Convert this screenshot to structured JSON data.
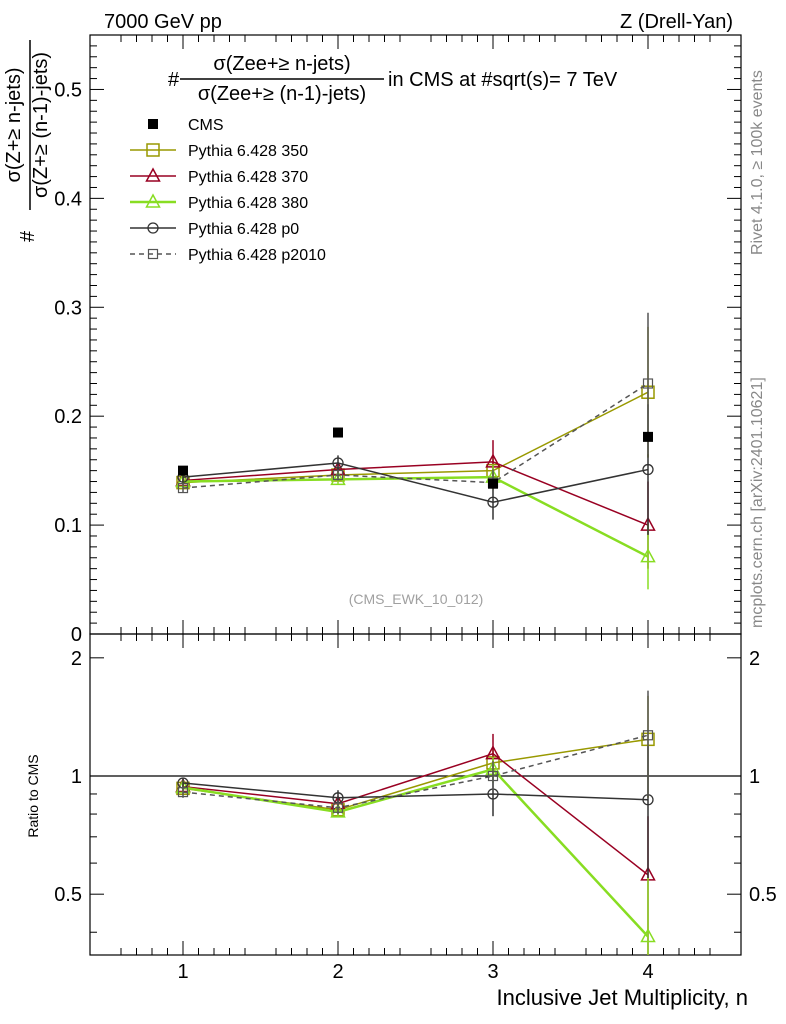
{
  "header": {
    "energy_label": "7000 GeV pp",
    "process_label": "Z (Drell-Yan)"
  },
  "side": {
    "rivet_label": "Rivet 4.1.0, ≥ 100k events",
    "mcplots_label": "mcplots.cern.ch [arXiv:2401.10621]"
  },
  "chart_data": [
    {
      "type": "scatter",
      "panel": "main",
      "title_prefix": "#",
      "title_numerator": "σ(Zee+≥ n-jets)",
      "title_denominator": "σ(Zee+≥ (n-1)-jets)",
      "title_suffix": "in CMS at #sqrt(s)= 7 TeV",
      "ylabel_prefix": "#",
      "ylabel_numerator": "σ(Z+≥ n-jets)",
      "ylabel_denominator": "σ(Z+≥ (n-1)-jets)",
      "ylim": [
        0,
        0.55
      ],
      "xlim": [
        0.4,
        4.6
      ],
      "yticks": [
        "0",
        "0.1",
        "0.2",
        "0.3",
        "0.4",
        "0.5"
      ],
      "analysis_id": "(CMS_EWK_10_012)",
      "legend": [
        "CMS",
        "Pythia 6.428 350",
        "Pythia 6.428 370",
        "Pythia 6.428 380",
        "Pythia 6.428 p0",
        "Pythia 6.428 p2010"
      ],
      "x": [
        1,
        2,
        3,
        4
      ],
      "series": [
        {
          "name": "CMS",
          "values": [
            0.15,
            0.185,
            0.138,
            0.181
          ],
          "color": "#000000",
          "marker": "filled-square"
        },
        {
          "name": "Pythia 6.428 350",
          "values": [
            0.139,
            0.146,
            0.15,
            0.222
          ],
          "errors": [
            0.004,
            0.005,
            0.012,
            0.06
          ],
          "color": "#999900",
          "marker": "open-square"
        },
        {
          "name": "Pythia 6.428 370",
          "values": [
            0.141,
            0.151,
            0.158,
            0.1
          ],
          "errors": [
            0.004,
            0.005,
            0.02,
            0.04
          ],
          "color": "#990022",
          "marker": "open-triangle"
        },
        {
          "name": "Pythia 6.428 380",
          "values": [
            0.14,
            0.142,
            0.144,
            0.071
          ],
          "errors": [
            0.004,
            0.004,
            0.012,
            0.03
          ],
          "color": "#88dd22",
          "marker": "open-triangle"
        },
        {
          "name": "Pythia 6.428 p0",
          "values": [
            0.144,
            0.157,
            0.121,
            0.151
          ],
          "errors": [
            0.004,
            0.007,
            0.016,
            0.06
          ],
          "color": "#333333",
          "marker": "open-circle"
        },
        {
          "name": "Pythia 6.428 p2010",
          "values": [
            0.134,
            0.146,
            0.139,
            0.23
          ],
          "errors": [
            0.004,
            0.005,
            0.012,
            0.065
          ],
          "color": "#555555",
          "marker": "open-square-small",
          "dashed": true
        }
      ]
    },
    {
      "type": "scatter",
      "panel": "ratio",
      "ylabel": "Ratio to CMS",
      "xlabel": "Inclusive Jet Multiplicity, n",
      "ylim": [
        0.35,
        2.3
      ],
      "xlim": [
        0.4,
        4.6
      ],
      "yticks": [
        "0.5",
        "1",
        "2"
      ],
      "xticks": [
        "1",
        "2",
        "3",
        "4"
      ],
      "reference_line": 1,
      "x": [
        1,
        2,
        3,
        4
      ],
      "series": [
        {
          "name": "Pythia 6.428 350",
          "values": [
            0.93,
            0.82,
            1.08,
            1.24
          ],
          "errors": [
            0.03,
            0.03,
            0.09,
            0.36
          ]
        },
        {
          "name": "Pythia 6.428 370",
          "values": [
            0.94,
            0.85,
            1.14,
            0.56
          ],
          "errors": [
            0.03,
            0.03,
            0.14,
            0.23
          ]
        },
        {
          "name": "Pythia 6.428 380",
          "values": [
            0.935,
            0.81,
            1.04,
            0.39
          ],
          "errors": [
            0.03,
            0.025,
            0.08,
            0.16
          ]
        },
        {
          "name": "Pythia 6.428 p0",
          "values": [
            0.96,
            0.88,
            0.9,
            0.87
          ],
          "errors": [
            0.03,
            0.04,
            0.11,
            0.32
          ]
        },
        {
          "name": "Pythia 6.428 p2010",
          "values": [
            0.91,
            0.83,
            1.0,
            1.27
          ],
          "errors": [
            0.03,
            0.03,
            0.09,
            0.38
          ]
        }
      ]
    }
  ]
}
